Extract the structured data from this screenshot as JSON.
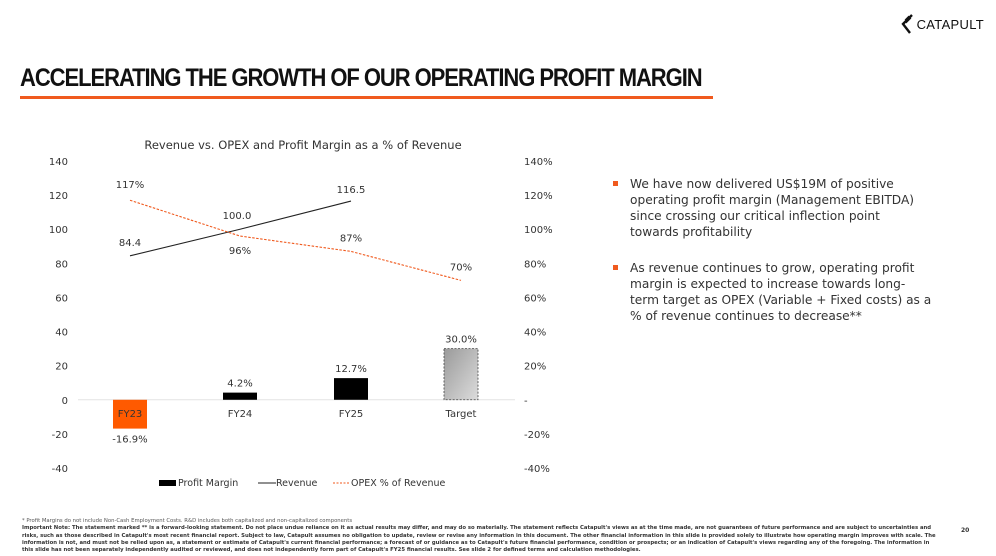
{
  "brand": {
    "name": "CATAPULT",
    "accent_color": "#f05a1e"
  },
  "header": {
    "title": "ACCELERATING THE GROWTH OF OUR OPERATING PROFIT MARGIN"
  },
  "chart_data": {
    "type": "bar",
    "title": "Revenue vs. OPEX and Profit Margin as a % of Revenue",
    "categories": [
      "FY23",
      "FY24",
      "FY25",
      "Target"
    ],
    "primary_axis": {
      "ylim": [
        -40,
        140
      ],
      "ticks": [
        140,
        120,
        100,
        80,
        60,
        40,
        20,
        0,
        -20,
        -40
      ],
      "tick_labels": [
        "140",
        "120",
        "100",
        "80",
        "60",
        "40",
        "20",
        "0",
        "-20",
        "-40"
      ]
    },
    "secondary_axis": {
      "ylim": [
        -40,
        140
      ],
      "ticks": [
        140,
        120,
        100,
        80,
        60,
        40,
        20,
        0,
        -20,
        -40
      ],
      "tick_labels": [
        "140%",
        "120%",
        "100%",
        "80%",
        "60%",
        "40%",
        "20%",
        "-",
        "-20%",
        "-40%"
      ]
    },
    "grid": false,
    "legend_position": "bottom",
    "series": [
      {
        "name": "Profit Margin",
        "type": "bar",
        "axis": "secondary",
        "values": [
          -16.9,
          4.2,
          12.7,
          30.0
        ],
        "labels": [
          "-16.9%",
          "4.2%",
          "12.7%",
          "30.0%"
        ],
        "colors": [
          "#ff5a00",
          "#000000",
          "#000000",
          "#b0b0b0"
        ],
        "styles": [
          "solid",
          "solid",
          "solid",
          "dashed-gradient"
        ]
      },
      {
        "name": "Revenue",
        "type": "line",
        "axis": "primary",
        "values": [
          84.4,
          100.0,
          116.5,
          null
        ],
        "labels": [
          "84.4",
          "100.0",
          "116.5",
          ""
        ],
        "color": "#222222",
        "style": "solid"
      },
      {
        "name": "OPEX % of Revenue",
        "type": "line",
        "axis": "secondary",
        "values": [
          117,
          96,
          87,
          70
        ],
        "labels": [
          "117%",
          "96%",
          "87%",
          "70%"
        ],
        "color": "#f05a1e",
        "style": "dashed"
      }
    ]
  },
  "bullets": [
    {
      "text": "We have now delivered US$19M of positive operating profit margin (Management EBITDA) since crossing our critical inflection point towards profitability"
    },
    {
      "text": "As revenue continues to grow, operating profit margin is expected to increase towards long-term target as OPEX (Variable + Fixed costs) as a % of revenue continues to decrease**"
    }
  ],
  "footer": {
    "footnote": "* Profit Margins do not include Non-Cash Employment Costs. R&D includes both capitalized and non-capitalized components",
    "important_note_label": "Important Note:",
    "important_note": "The statement marked ** is a forward-looking statement. Do not place undue reliance on it as actual results may differ, and may do so materially. The statement reflects Catapult's views as at the time made, are not guarantees of future performance and are subject to uncertainties and risks, such as those described in Catapult's most recent financial report. Subject to law, Catapult assumes no obligation to update, review or revise any information in this document. The other financial information in this slide is provided solely to illustrate how operating margin improves with scale. The information is not, and must not be relied upon as, a statement or estimate of Catapult's current financial performance; a forecast of or guidance as to Catapult's future financial performance, condition or prospects; or an indication of Catapult's views regarding any of the foregoing. The information in this slide has not been separately independently audited or reviewed, and does not independently form part of Catapult's FY25 financial results. See slide 2 for defined terms and calculation methodologies.",
    "page_number": "20"
  }
}
